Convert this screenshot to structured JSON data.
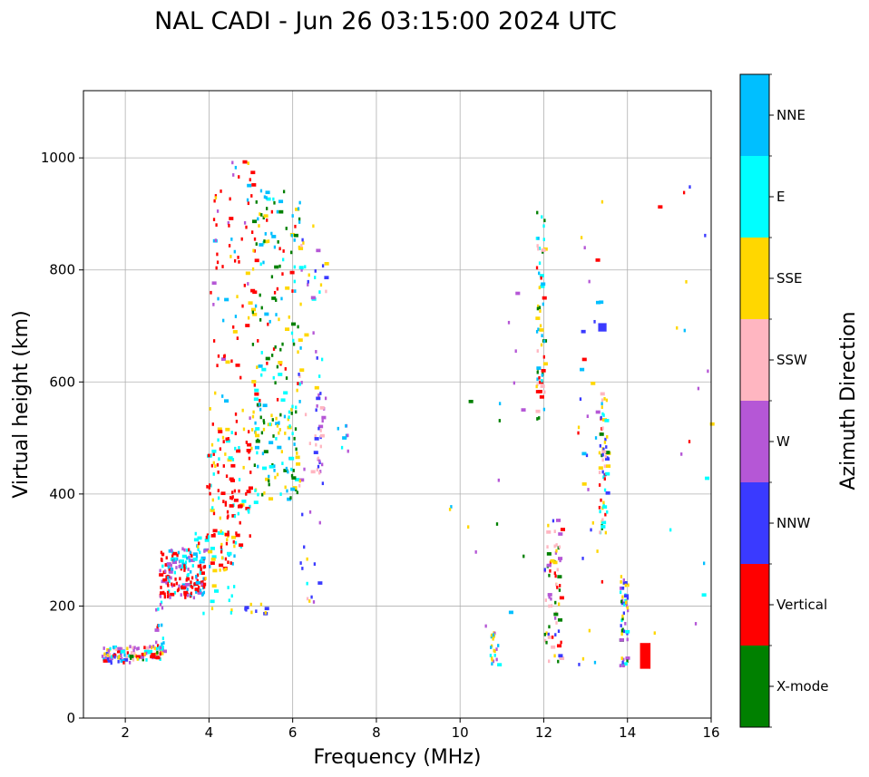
{
  "chart_data": {
    "type": "scatter",
    "title": "NAL CADI - Jun 26 03:15:00 2024 UTC",
    "xlabel": "Frequency (MHz)",
    "ylabel": "Virtual height (km)",
    "xlim": [
      1.0,
      16.0
    ],
    "ylim": [
      0,
      1120
    ],
    "xticks": [
      2,
      4,
      6,
      8,
      10,
      12,
      14,
      16
    ],
    "yticks": [
      0,
      200,
      400,
      600,
      800,
      1000
    ],
    "grid": true,
    "colorbar": {
      "title": "Azimuth Direction",
      "categories": [
        {
          "label": "X-mode",
          "color": "#008000"
        },
        {
          "label": "Vertical",
          "color": "#ff0000"
        },
        {
          "label": "NNW",
          "color": "#3a3aff"
        },
        {
          "label": "W",
          "color": "#b557d6"
        },
        {
          "label": "SSW",
          "color": "#ffb6c1"
        },
        {
          "label": "SSE",
          "color": "#ffd700"
        },
        {
          "label": "E",
          "color": "#00ffff"
        },
        {
          "label": "NNE",
          "color": "#00bfff"
        }
      ]
    },
    "cell_size": {
      "df_mhz": 0.05,
      "dh_km": 6
    },
    "clusters": [
      {
        "f": [
          1.4,
          2.1
        ],
        "h": [
          95,
          125
        ],
        "n": 55,
        "mix": [
          "Vertical",
          "E",
          "W",
          "NNE",
          "NNW",
          "SSW",
          "SSE"
        ]
      },
      {
        "f": [
          2.0,
          2.9
        ],
        "h": [
          100,
          125
        ],
        "n": 55,
        "mix": [
          "Vertical",
          "SSW",
          "SSE",
          "E",
          "W",
          "X-mode"
        ]
      },
      {
        "f": [
          2.7,
          2.9
        ],
        "h": [
          120,
          210
        ],
        "n": 20,
        "mix": [
          "Vertical",
          "W",
          "NNE",
          "E"
        ]
      },
      {
        "f": [
          2.8,
          3.9
        ],
        "h": [
          210,
          300
        ],
        "n": 180,
        "mix": [
          "Vertical",
          "Vertical",
          "Vertical",
          "NNE",
          "E",
          "W"
        ]
      },
      {
        "f": [
          3.6,
          4.6
        ],
        "h": [
          260,
          330
        ],
        "n": 45,
        "mix": [
          "E",
          "NNE",
          "SSE",
          "Vertical"
        ]
      },
      {
        "f": [
          3.9,
          5.0
        ],
        "h": [
          300,
          520
        ],
        "n": 110,
        "mix": [
          "Vertical",
          "Vertical",
          "Vertical",
          "SSE",
          "E"
        ]
      },
      {
        "f": [
          4.0,
          5.2
        ],
        "h": [
          520,
          990
        ],
        "n": 90,
        "mix": [
          "Vertical",
          "Vertical",
          "Vertical",
          "NNE",
          "SSE",
          "W"
        ]
      },
      {
        "f": [
          5.0,
          6.1
        ],
        "h": [
          380,
          560
        ],
        "n": 100,
        "mix": [
          "X-mode",
          "X-mode",
          "NNE",
          "E",
          "SSE"
        ]
      },
      {
        "f": [
          5.0,
          6.2
        ],
        "h": [
          560,
          940
        ],
        "n": 120,
        "mix": [
          "X-mode",
          "X-mode",
          "Vertical",
          "NNE",
          "E",
          "SSE"
        ]
      },
      {
        "f": [
          6.1,
          6.8
        ],
        "h": [
          180,
          880
        ],
        "n": 60,
        "mix": [
          "W",
          "NNW",
          "SSW",
          "SSE",
          "E"
        ]
      },
      {
        "f": [
          6.5,
          6.7
        ],
        "h": [
          430,
          580
        ],
        "n": 25,
        "mix": [
          "NNW",
          "W",
          "SSW"
        ]
      },
      {
        "f": [
          7.0,
          7.3
        ],
        "h": [
          470,
          530
        ],
        "n": 8,
        "mix": [
          "NNE",
          "E",
          "W"
        ]
      },
      {
        "f": [
          4.8,
          5.6
        ],
        "h": [
          180,
          200
        ],
        "n": 10,
        "mix": [
          "NNW",
          "SSE"
        ]
      },
      {
        "f": [
          3.8,
          4.6
        ],
        "h": [
          180,
          260
        ],
        "n": 12,
        "mix": [
          "SSE",
          "E"
        ]
      },
      {
        "f": [
          9.6,
          11.5
        ],
        "h": [
          120,
          930
        ],
        "n": 18,
        "mix": [
          "Vertical",
          "X-mode",
          "W",
          "NNE",
          "SSE"
        ]
      },
      {
        "f": [
          10.7,
          10.9
        ],
        "h": [
          90,
          150
        ],
        "n": 20,
        "mix": [
          "SSE",
          "NNE",
          "E",
          "W"
        ]
      },
      {
        "f": [
          11.8,
          12.0
        ],
        "h": [
          530,
          910
        ],
        "n": 60,
        "mix": [
          "NNE",
          "X-mode",
          "SSW",
          "Vertical",
          "E",
          "SSE"
        ]
      },
      {
        "f": [
          12.0,
          12.4
        ],
        "h": [
          90,
          350
        ],
        "n": 70,
        "mix": [
          "W",
          "X-mode",
          "NNW",
          "SSE",
          "Vertical",
          "SSW"
        ]
      },
      {
        "f": [
          12.8,
          13.4
        ],
        "h": [
          90,
          930
        ],
        "n": 35,
        "mix": [
          "W",
          "SSE",
          "NNW",
          "NNE",
          "Vertical"
        ]
      },
      {
        "f": [
          13.3,
          13.5
        ],
        "h": [
          310,
          580
        ],
        "n": 60,
        "mix": [
          "NNW",
          "SSE",
          "Vertical",
          "E",
          "X-mode",
          "SSW"
        ]
      },
      {
        "f": [
          13.8,
          14.0
        ],
        "h": [
          90,
          250
        ],
        "n": 50,
        "mix": [
          "SSE",
          "NNW",
          "E",
          "X-mode",
          "W"
        ]
      },
      {
        "f": [
          14.6,
          16.0
        ],
        "h": [
          110,
          1000
        ],
        "n": 18,
        "mix": [
          "NNW",
          "NNE",
          "E",
          "W",
          "SSE",
          "Vertical"
        ]
      }
    ],
    "annotations": {
      "vertical_block": {
        "f": [
          14.3,
          14.55
        ],
        "h": [
          88,
          134
        ],
        "category": "Vertical"
      },
      "nne_column": {
        "f": [
          13.3,
          13.5
        ],
        "h": [
          690,
          705
        ],
        "category": "NNW"
      }
    }
  }
}
